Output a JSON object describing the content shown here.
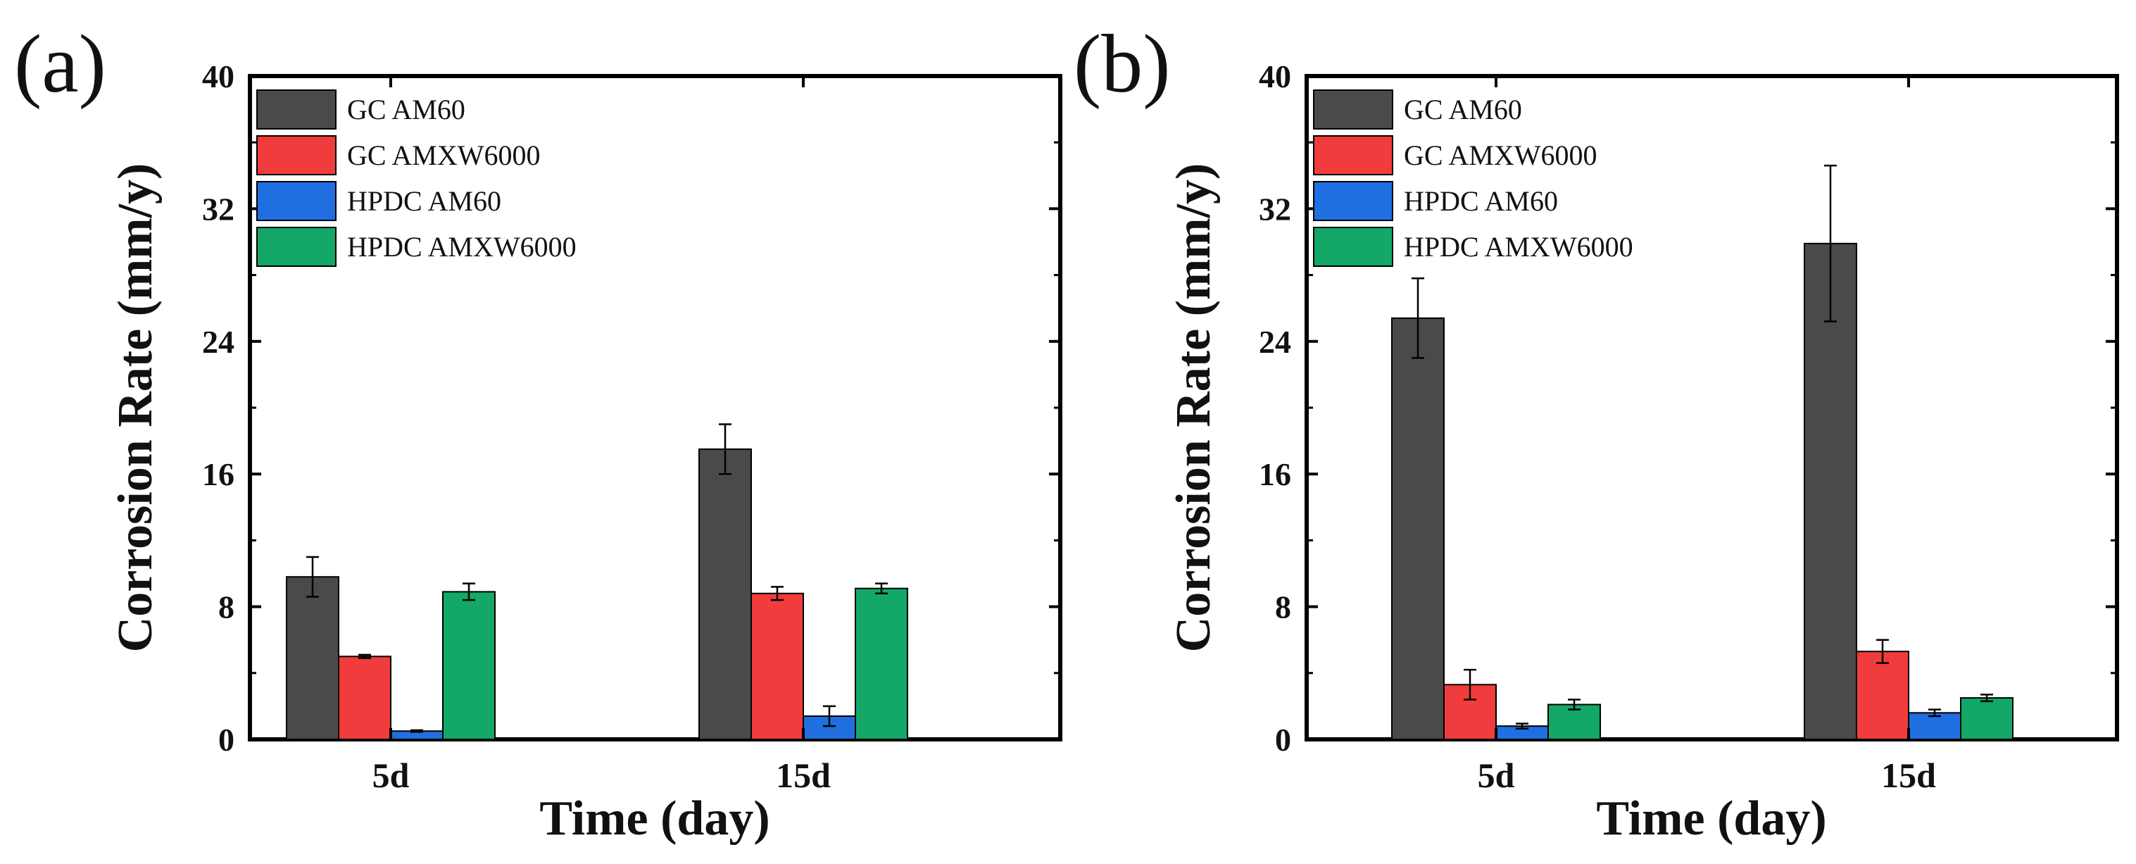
{
  "chart_data": [
    {
      "type": "bar",
      "panel_label": "(a)",
      "categories": [
        "5d",
        "15d"
      ],
      "xlabel": "Time (day)",
      "ylabel": "Corrosion Rate (mm/y)",
      "ylim": [
        0,
        40
      ],
      "yticks": [
        "0",
        "8",
        "16",
        "24",
        "32",
        "40"
      ],
      "legend_position": "top-left",
      "series": [
        {
          "name": "GC AM60",
          "color": "#4a4a4a",
          "values": [
            9.8,
            17.5
          ],
          "errors": [
            1.2,
            1.5
          ]
        },
        {
          "name": "GC AMXW6000",
          "color": "#f03c3c",
          "values": [
            5.0,
            8.8
          ],
          "errors": [
            0.1,
            0.4
          ]
        },
        {
          "name": "HPDC AM60",
          "color": "#1f6fe0",
          "values": [
            0.5,
            1.4
          ],
          "errors": [
            0.05,
            0.6
          ]
        },
        {
          "name": "HPDC AMXW6000",
          "color": "#13a868",
          "values": [
            8.9,
            9.1
          ],
          "errors": [
            0.5,
            0.3
          ]
        }
      ]
    },
    {
      "type": "bar",
      "panel_label": "(b)",
      "categories": [
        "5d",
        "15d"
      ],
      "xlabel": "Time (day)",
      "ylabel": "Corrosion Rate (mm/y)",
      "ylim": [
        0,
        40
      ],
      "yticks": [
        "0",
        "8",
        "16",
        "24",
        "32",
        "40"
      ],
      "legend_position": "top-left",
      "series": [
        {
          "name": "GC AM60",
          "color": "#4a4a4a",
          "values": [
            25.4,
            29.9
          ],
          "errors": [
            2.4,
            4.7
          ]
        },
        {
          "name": "GC AMXW6000",
          "color": "#f03c3c",
          "values": [
            3.3,
            5.3
          ],
          "errors": [
            0.9,
            0.7
          ]
        },
        {
          "name": "HPDC AM60",
          "color": "#1f6fe0",
          "values": [
            0.8,
            1.6
          ],
          "errors": [
            0.15,
            0.2
          ]
        },
        {
          "name": "HPDC AMXW6000",
          "color": "#13a868",
          "values": [
            2.1,
            2.5
          ],
          "errors": [
            0.3,
            0.2
          ]
        }
      ]
    }
  ]
}
